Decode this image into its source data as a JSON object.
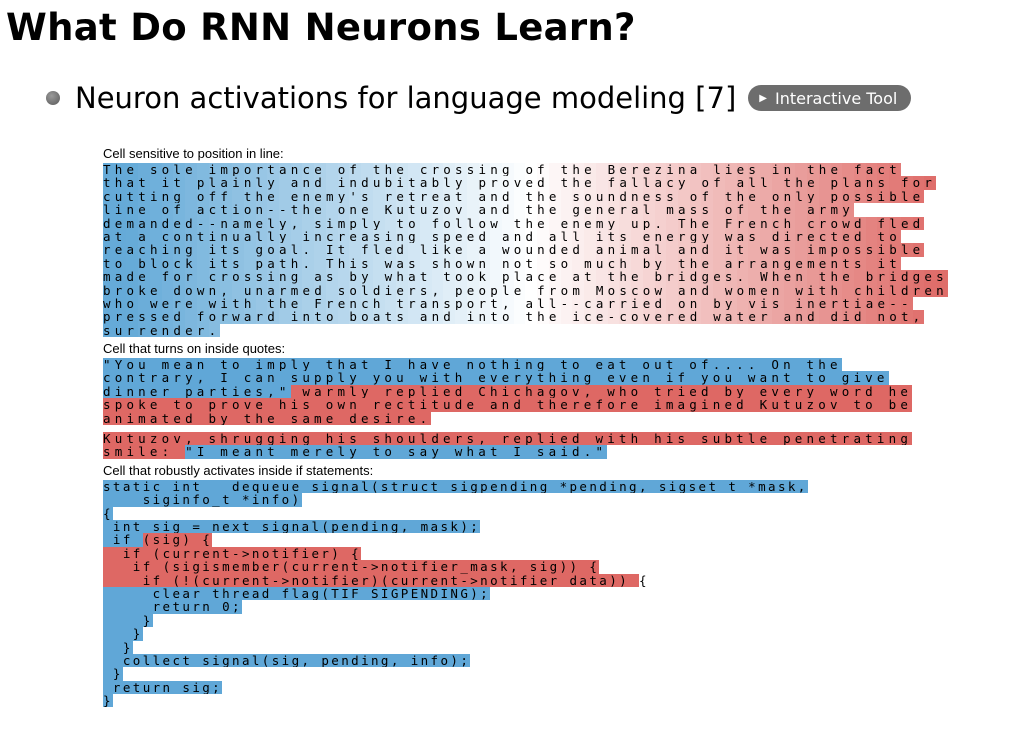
{
  "slide": {
    "title": "What Do RNN Neurons Learn?",
    "bullet": "Neuron activations for language modeling [7]",
    "button_label": "Interactive Tool",
    "button_icon": "play-triangle-icon"
  },
  "figure": {
    "colors": {
      "positive": "#d9534f",
      "negative": "#4a9bd1",
      "neutral": "#ffffff"
    },
    "sections": [
      {
        "label": "Cell sensitive to position in line:",
        "mode": "gradient",
        "lines": [
          "The sole importance of the crossing of the Berezina lies in the fact",
          "that it plainly and indubitably proved the fallacy of all the plans for",
          "cutting off the enemy's retreat and the soundness of the only possible",
          "line of action--the one Kutuzov and the general mass of the army",
          "demanded--namely, simply to follow the enemy up. The French crowd fled",
          "at a continually increasing speed and all its energy was directed to",
          "reaching its goal. It fled like a wounded animal and it was impossible",
          "to block its path. This was shown not so much by the arrangements it",
          "made for crossing as by what took place at the bridges. When the bridges",
          "broke down, unarmed soldiers, people from Moscow and women with children",
          "who were with the French transport, all--carried on by vis inertiae--",
          "pressed forward into boats and into the ice-covered water and did not,",
          "surrender."
        ]
      },
      {
        "label": "Cell that turns on inside quotes:",
        "mode": "segments",
        "lines": [
          [
            [
              "\"You mean to imply that I have nothing to eat out of.... On the",
              -1
            ]
          ],
          [
            [
              "contrary, I can supply you with everything even if you want to give",
              -1
            ]
          ],
          [
            [
              "dinner parties,\"",
              -1
            ],
            [
              " warmly replied Chichagov, who tried by every word he",
              1
            ]
          ],
          [
            [
              "spoke to prove his own rectitude and therefore imagined Kutuzov to be",
              1
            ]
          ],
          [
            [
              "animated by the same desire.",
              1
            ]
          ],
          [],
          [
            [
              "Kutuzov, shrugging his shoulders, replied with his subtle penetrating",
              1
            ]
          ],
          [
            [
              "smile: ",
              1
            ],
            [
              "\"I meant merely to say what I said.\"",
              -1
            ]
          ]
        ]
      },
      {
        "label": "Cell that robustly activates inside if statements:",
        "mode": "segments",
        "lines": [
          [
            [
              "static int __dequeue_signal(struct sigpending *pending, sigset_t *mask,",
              -1
            ]
          ],
          [
            [
              "    siginfo_t *info)",
              -1
            ]
          ],
          [
            [
              "{",
              -1
            ]
          ],
          [
            [
              " int sig = next_signal(pending, mask);",
              -1
            ]
          ],
          [
            [
              " if ",
              -1
            ],
            [
              "(sig) {",
              1
            ]
          ],
          [
            [
              "  if ",
              1
            ],
            [
              "(current->notifier) {",
              1
            ]
          ],
          [
            [
              "   if ",
              1
            ],
            [
              "(sigismember(current->notifier_mask, sig)) {",
              1
            ]
          ],
          [
            [
              "    if ",
              1
            ],
            [
              "(!(current->notifier)(current->notifier_data)) ",
              1
            ],
            [
              "{",
              0
            ]
          ],
          [
            [
              "     clear_thread_flag(TIF_SIGPENDING);",
              -1
            ]
          ],
          [
            [
              "     return 0;",
              -1
            ]
          ],
          [
            [
              "    }",
              -1
            ]
          ],
          [
            [
              "   }",
              -1
            ]
          ],
          [
            [
              "  }",
              -1
            ]
          ],
          [
            [
              "  collect_signal(sig, pending, info);",
              -1
            ]
          ],
          [
            [
              " }",
              -1
            ]
          ],
          [
            [
              " return sig;",
              -1
            ]
          ],
          [
            [
              "}",
              -1
            ]
          ]
        ]
      }
    ]
  }
}
